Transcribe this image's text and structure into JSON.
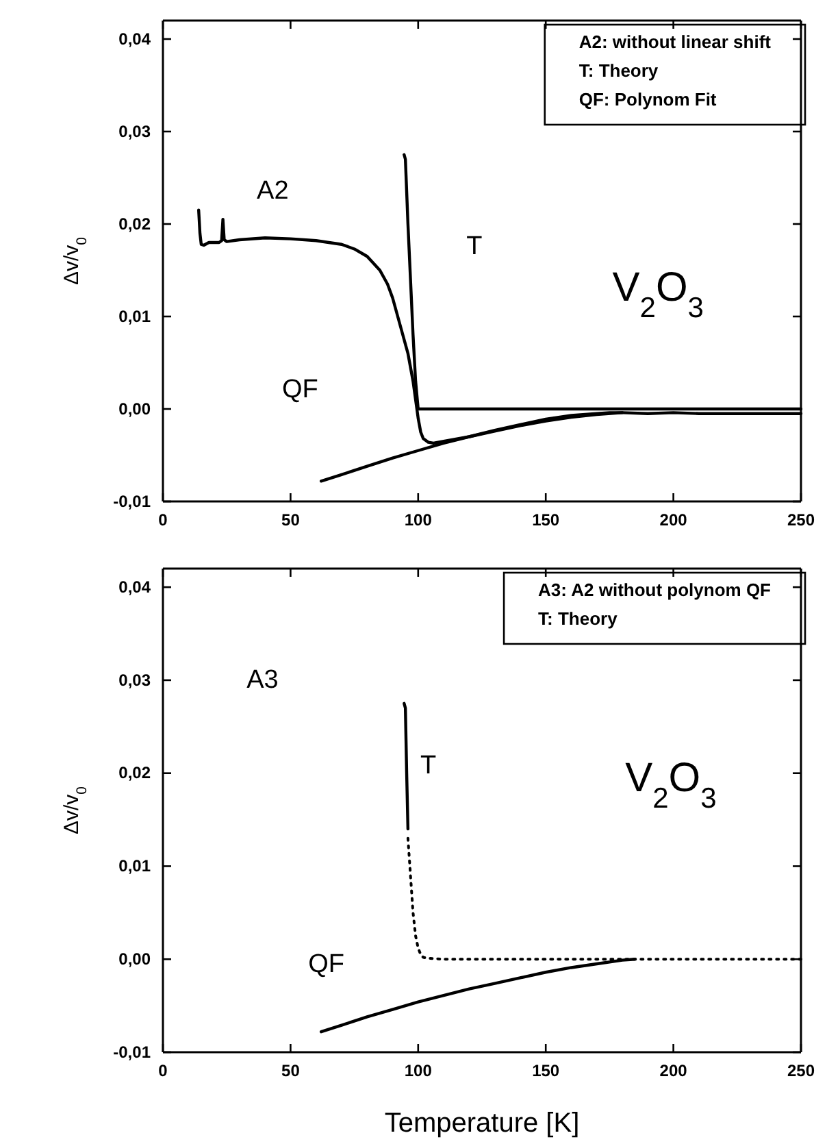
{
  "chart_data": [
    {
      "type": "line",
      "ylabel": "Δv/v$_{0}$",
      "xlim": [
        0,
        250
      ],
      "ylim": [
        -0.01,
        0.042
      ],
      "xticks": [
        0,
        50,
        100,
        150,
        200,
        250
      ],
      "yticks": [
        {
          "value": -0.01,
          "label": "-0,01"
        },
        {
          "value": 0,
          "label": "0,00"
        },
        {
          "value": 0.01,
          "label": "0,01"
        },
        {
          "value": 0.02,
          "label": "0,02"
        },
        {
          "value": 0.03,
          "label": "0,03"
        },
        {
          "value": 0.04,
          "label": "0,04"
        }
      ],
      "grid": false,
      "marker": "none",
      "series": [
        {
          "name": "A2",
          "color": "#000000",
          "x": [
            14,
            14.5,
            15,
            16,
            18,
            20,
            22,
            23,
            23.5,
            24,
            25,
            30,
            40,
            50,
            60,
            70,
            75,
            80,
            85,
            88,
            90,
            92,
            94,
            96,
            98,
            99,
            100,
            101,
            102,
            104,
            106,
            110,
            120,
            130,
            140,
            150,
            160,
            170,
            175,
            180,
            190,
            200,
            210,
            220,
            230,
            240,
            250
          ],
          "values": [
            0.0215,
            0.019,
            0.0178,
            0.0177,
            0.018,
            0.018,
            0.018,
            0.0182,
            0.0205,
            0.0183,
            0.0181,
            0.0183,
            0.0185,
            0.0184,
            0.0182,
            0.0178,
            0.0173,
            0.0165,
            0.015,
            0.0135,
            0.012,
            0.01,
            0.008,
            0.006,
            0.003,
            0.001,
            -0.001,
            -0.0025,
            -0.0032,
            -0.0036,
            -0.0037,
            -0.0035,
            -0.003,
            -0.0023,
            -0.0017,
            -0.0011,
            -0.0007,
            -0.0005,
            -0.0004,
            -0.0004,
            -0.0005,
            -0.0004,
            -0.0005,
            -0.0005,
            -0.0005,
            -0.0005,
            -0.0005
          ]
        },
        {
          "name": "T",
          "color": "#000000",
          "x": [
            94.5,
            95,
            96,
            97,
            98,
            99,
            100,
            110,
            150,
            200,
            250
          ],
          "values": [
            0.0275,
            0.027,
            0.02,
            0.014,
            0.008,
            0.003,
            0.0,
            0.0,
            0.0,
            0.0,
            0.0
          ]
        },
        {
          "name": "QF",
          "color": "#000000",
          "x": [
            62,
            70,
            80,
            90,
            100,
            110,
            120,
            130,
            140,
            150,
            160,
            170,
            180
          ],
          "values": [
            -0.0078,
            -0.0071,
            -0.0062,
            -0.0053,
            -0.0045,
            -0.0037,
            -0.003,
            -0.0024,
            -0.0018,
            -0.0013,
            -0.0009,
            -0.0006,
            -0.0004
          ]
        }
      ],
      "annotations": [
        "A2: without linear shift",
        "T:  Theory",
        "QF: Polynom Fit",
        "V$_{2}$O$_{3}$"
      ]
    },
    {
      "type": "line",
      "xlabel": "Temperature [K]",
      "ylabel": "Δv/v$_{0}$",
      "xlim": [
        0,
        250
      ],
      "ylim": [
        -0.01,
        0.042
      ],
      "xticks": [
        0,
        50,
        100,
        150,
        200,
        250
      ],
      "yticks": [
        {
          "value": -0.01,
          "label": "-0,01"
        },
        {
          "value": 0,
          "label": "0,00"
        },
        {
          "value": 0.01,
          "label": "0,01"
        },
        {
          "value": 0.02,
          "label": "0,02"
        },
        {
          "value": 0.03,
          "label": "0,03"
        },
        {
          "value": 0.04,
          "label": "0,04"
        }
      ],
      "grid": false,
      "marker": "none",
      "series": [
        {
          "color": "#000000",
          "line_style": "dotted",
          "x": [
            96,
            97,
            98,
            99,
            100,
            101,
            102,
            104,
            110,
            130,
            150,
            170,
            190,
            210,
            230,
            250
          ],
          "values": [
            0.013,
            0.009,
            0.005,
            0.0025,
            0.0012,
            0.0005,
            0.0002,
            0.0001,
            0.0,
            0.0,
            0.0,
            0.0,
            0.0,
            0.0,
            0.0,
            0.0
          ]
        },
        {
          "name": "T",
          "color": "#000000",
          "x": [
            94.5,
            95,
            95.5,
            96
          ],
          "values": [
            0.0275,
            0.027,
            0.02,
            0.014
          ]
        },
        {
          "name": "QF",
          "color": "#000000",
          "x": [
            62,
            70,
            80,
            90,
            100,
            110,
            120,
            130,
            140,
            150,
            160,
            170,
            180,
            185
          ],
          "values": [
            -0.0078,
            -0.0071,
            -0.0062,
            -0.0054,
            -0.0046,
            -0.0039,
            -0.0032,
            -0.0026,
            -0.002,
            -0.0014,
            -0.0009,
            -0.0005,
            -0.0001,
            0.0
          ]
        }
      ],
      "annotations": [
        "A3: A2 without polynom QF",
        "T:  Theory",
        "A3",
        "V$_{2}$O$_{3}$"
      ]
    }
  ]
}
